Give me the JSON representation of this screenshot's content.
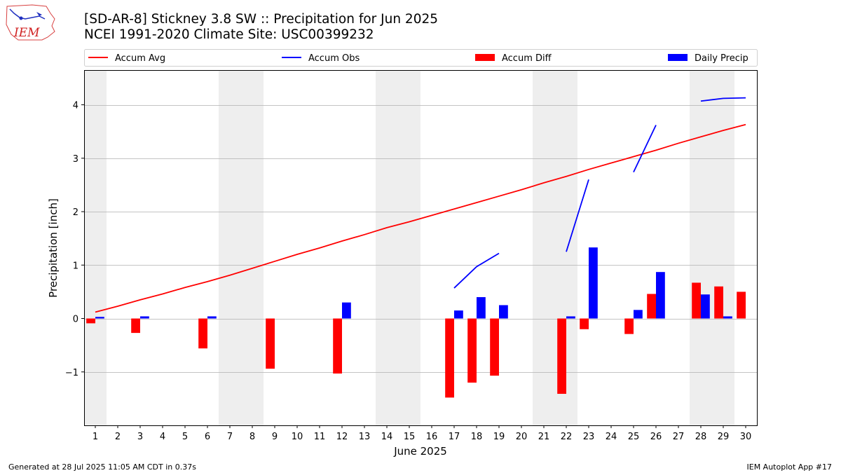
{
  "title": "[SD-AR-8] Stickney 3.8 SW :: Precipitation for Jun 2025",
  "subtitle": "NCEI 1991-2020 Climate Site: USC00399232",
  "footer_left": "Generated at 28 Jul 2025 11:05 AM CDT in 0.37s",
  "footer_right": "IEM Autoplot App #17",
  "logo_text": "IEM",
  "colors": {
    "accum_avg": "#ff0000",
    "accum_obs": "#0000ff",
    "accum_diff": "#ff0000",
    "daily_precip": "#0000ff",
    "weekend_shade": "#eeeeee",
    "grid": "#b0b0b0"
  },
  "chart_data": {
    "type": "bar",
    "xlabel": "June 2025",
    "ylabel": "Precipitation [inch]",
    "xlim": [
      0.5,
      30.5
    ],
    "ylim": [
      -2.0,
      4.65
    ],
    "yticks": [
      -1,
      0,
      1,
      2,
      3,
      4
    ],
    "ytick_labels": [
      "−1",
      "0",
      "1",
      "2",
      "3",
      "4"
    ],
    "grid": "horizontal",
    "legend_placement": "top, above plot",
    "days": [
      1,
      2,
      3,
      4,
      5,
      6,
      7,
      8,
      9,
      10,
      11,
      12,
      13,
      14,
      15,
      16,
      17,
      18,
      19,
      20,
      21,
      22,
      23,
      24,
      25,
      26,
      27,
      28,
      29,
      30
    ],
    "weekend_shaded_days": [
      1,
      7,
      8,
      14,
      15,
      21,
      22,
      28,
      29
    ],
    "series": [
      {
        "name": "Accum Avg",
        "kind": "line",
        "values": [
          0.12,
          0.23,
          0.35,
          0.46,
          0.58,
          0.69,
          0.81,
          0.94,
          1.07,
          1.2,
          1.32,
          1.45,
          1.57,
          1.7,
          1.81,
          1.93,
          2.05,
          2.17,
          2.29,
          2.41,
          2.54,
          2.66,
          2.79,
          2.91,
          3.03,
          3.15,
          3.28,
          3.4,
          3.52,
          3.63
        ]
      },
      {
        "name": "Accum Obs",
        "kind": "line",
        "segments": [
          {
            "days": [
              17,
              18,
              19
            ],
            "values": [
              0.57,
              0.97,
              1.22
            ]
          },
          {
            "days": [
              22,
              23
            ],
            "values": [
              1.25,
              2.6
            ]
          },
          {
            "days": [
              25,
              26
            ],
            "values": [
              2.74,
              3.62
            ]
          },
          {
            "days": [
              28,
              29,
              30
            ],
            "values": [
              4.07,
              4.12,
              4.13
            ]
          }
        ]
      },
      {
        "name": "Accum Diff",
        "kind": "bar",
        "values": [
          -0.09,
          0,
          -0.27,
          0,
          0,
          -0.56,
          0,
          0,
          -0.94,
          0,
          0,
          -1.03,
          0,
          0,
          0,
          0,
          -1.48,
          -1.2,
          -1.07,
          0,
          0,
          -1.41,
          -0.2,
          0,
          -0.29,
          0.46,
          0,
          0.67,
          0.6,
          0.5
        ]
      },
      {
        "name": "Daily Precip",
        "kind": "bar",
        "values": [
          0.03,
          0,
          0.04,
          0,
          0,
          0.04,
          0,
          0,
          0,
          0,
          0,
          0.3,
          0,
          0,
          0,
          0,
          0.15,
          0.4,
          0.25,
          0,
          0,
          0.04,
          1.33,
          0,
          0.16,
          0.87,
          0,
          0.45,
          0.04,
          0
        ]
      }
    ]
  }
}
